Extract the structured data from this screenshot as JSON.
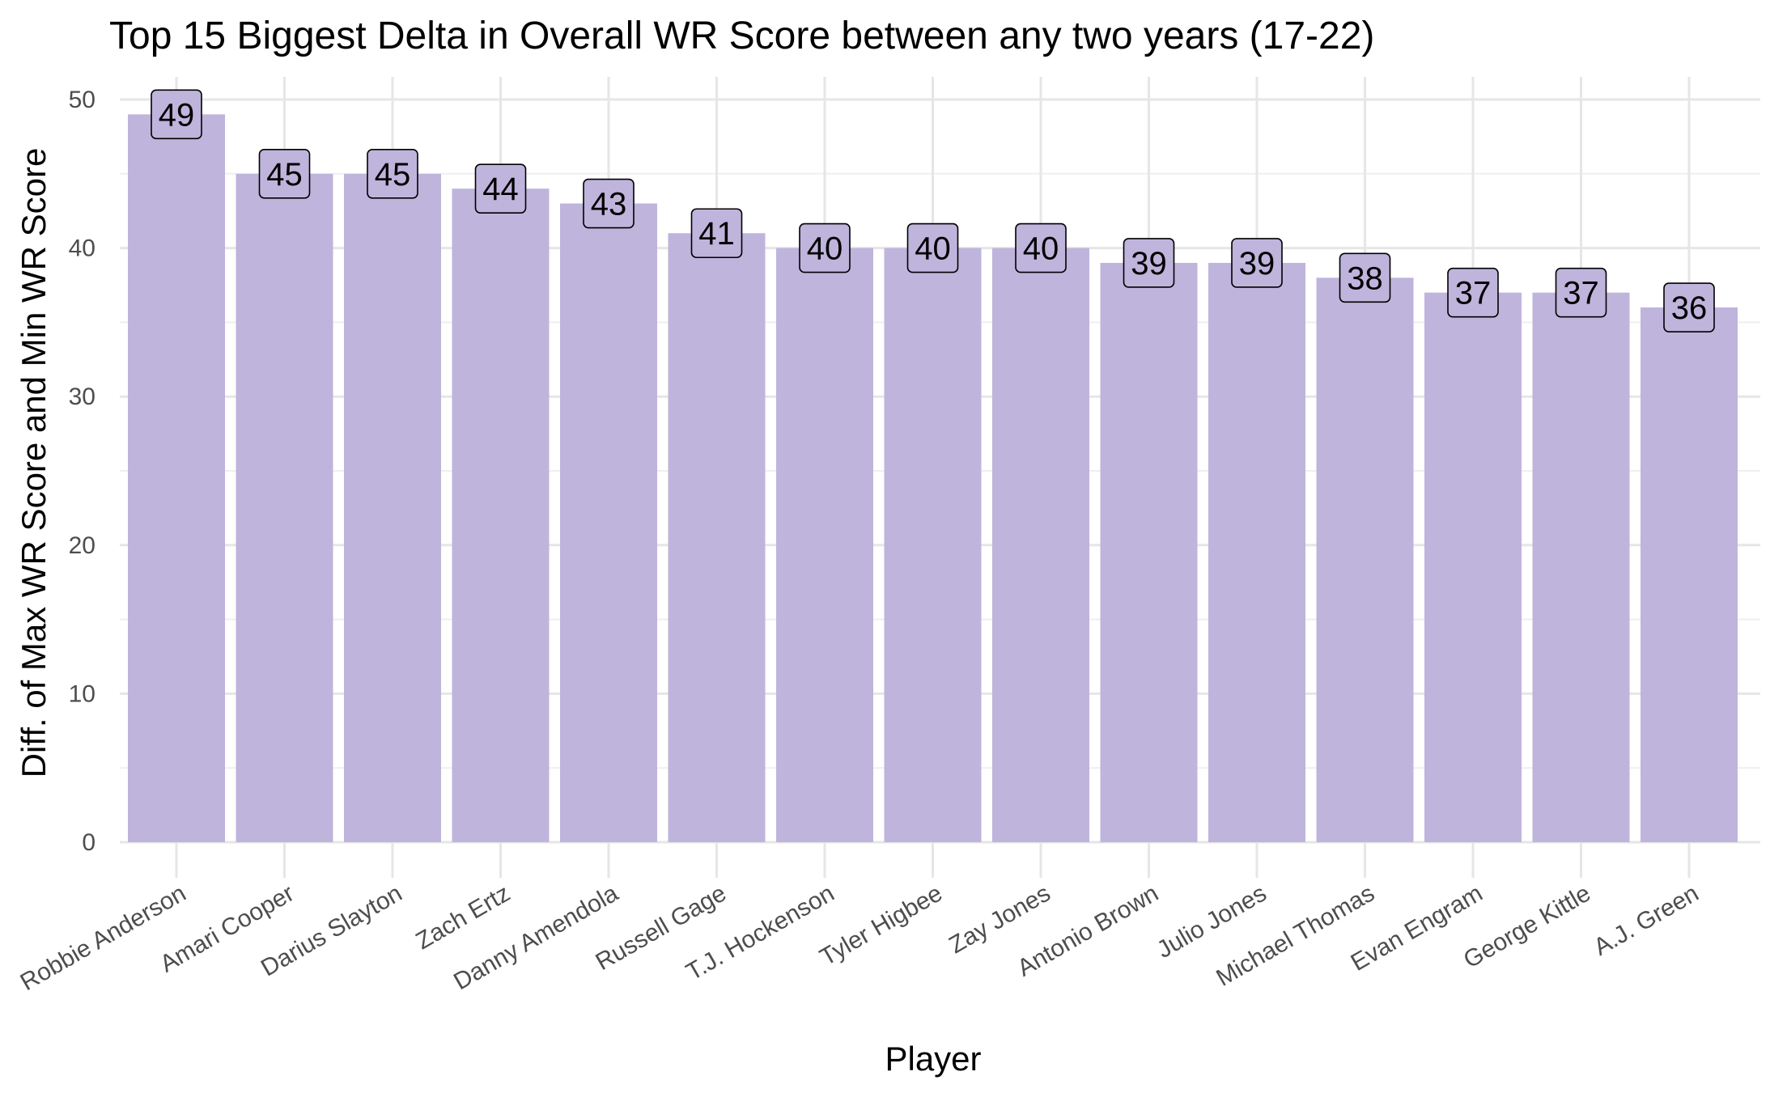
{
  "chart_data": {
    "type": "bar",
    "title": "Top 15 Biggest Delta in Overall WR Score between any two years (17-22)",
    "xlabel": "Player",
    "ylabel": "Diff. of Max WR Score and Min WR Score",
    "categories": [
      "Robbie Anderson",
      "Amari Cooper",
      "Darius Slayton",
      "Zach Ertz",
      "Danny Amendola",
      "Russell Gage",
      "T.J. Hockenson",
      "Tyler Higbee",
      "Zay Jones",
      "Antonio Brown",
      "Julio Jones",
      "Michael Thomas",
      "Evan Engram",
      "George Kittle",
      "A.J. Green"
    ],
    "values": [
      49,
      45,
      45,
      44,
      43,
      41,
      40,
      40,
      40,
      39,
      39,
      38,
      37,
      37,
      36
    ],
    "yticks": [
      0,
      10,
      20,
      30,
      40,
      50
    ],
    "ylim": [
      0,
      50
    ],
    "bar_color": "#bfb4dc",
    "grid": true,
    "legend": "none"
  }
}
